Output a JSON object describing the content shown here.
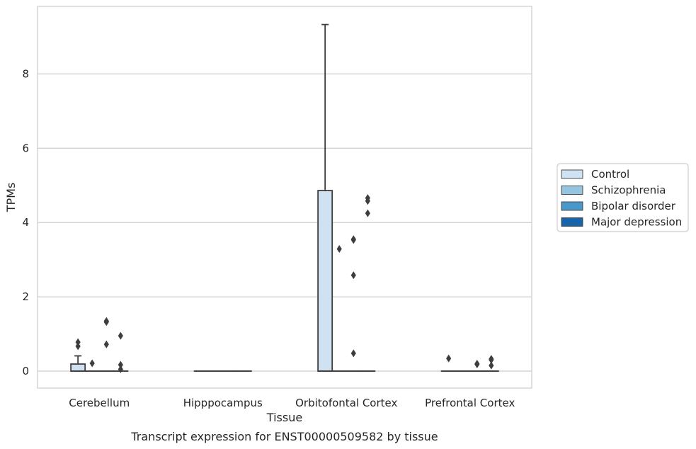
{
  "chart_data": {
    "type": "box",
    "title": "",
    "caption": "Transcript expression for ENST00000509582 by tissue",
    "xlabel": "Tissue",
    "ylabel": "TPMs",
    "ylim": [
      -0.45,
      9.8
    ],
    "yticks": [
      0,
      2,
      4,
      6,
      8
    ],
    "grid": true,
    "legend_position": "right",
    "categories": [
      "Cerebellum",
      "Hipppocampus",
      "Orbitofontal Cortex",
      "Prefrontal Cortex"
    ],
    "series": [
      {
        "name": "Control",
        "color": "#d0e1f2",
        "boxes": [
          {
            "q1": 0,
            "median": 0,
            "q3": 0.19,
            "whisker_low": 0,
            "whisker_high": 0.41,
            "outliers": [
              0.67,
              0.78
            ]
          },
          {
            "q1": 0,
            "median": 0,
            "q3": 0,
            "whisker_low": 0,
            "whisker_high": 0,
            "outliers": []
          },
          {
            "q1": 0,
            "median": 0,
            "q3": 4.86,
            "whisker_low": 0,
            "whisker_high": 9.33,
            "outliers": []
          },
          {
            "q1": 0,
            "median": 0,
            "q3": 0,
            "whisker_low": 0,
            "whisker_high": 0,
            "outliers": [
              0.34
            ]
          }
        ]
      },
      {
        "name": "Schizophrenia",
        "color": "#94c4df",
        "boxes": [
          {
            "q1": 0,
            "median": 0,
            "q3": 0,
            "whisker_low": 0,
            "whisker_high": 0,
            "outliers": [
              0.21
            ]
          },
          {
            "q1": 0,
            "median": 0,
            "q3": 0,
            "whisker_low": 0,
            "whisker_high": 0,
            "outliers": []
          },
          {
            "q1": 0,
            "median": 0,
            "q3": 0,
            "whisker_low": 0,
            "whisker_high": 0,
            "outliers": [
              3.29
            ]
          },
          {
            "q1": 0,
            "median": 0,
            "q3": 0,
            "whisker_low": 0,
            "whisker_high": 0,
            "outliers": []
          }
        ]
      },
      {
        "name": "Bipolar disorder",
        "color": "#4a98c9",
        "boxes": [
          {
            "q1": 0,
            "median": 0,
            "q3": 0,
            "whisker_low": 0,
            "whisker_high": 0,
            "outliers": [
              0.72,
              1.32,
              1.35
            ]
          },
          {
            "q1": 0,
            "median": 0,
            "q3": 0,
            "whisker_low": 0,
            "whisker_high": 0,
            "outliers": []
          },
          {
            "q1": 0,
            "median": 0,
            "q3": 0,
            "whisker_low": 0,
            "whisker_high": 0,
            "outliers": [
              0.48,
              2.58,
              3.53,
              3.55
            ]
          },
          {
            "q1": 0,
            "median": 0,
            "q3": 0,
            "whisker_low": 0,
            "whisker_high": 0,
            "outliers": [
              0.18,
              0.2
            ]
          }
        ]
      },
      {
        "name": "Major depression",
        "color": "#1764ab",
        "boxes": [
          {
            "q1": 0,
            "median": 0,
            "q3": 0,
            "whisker_low": 0,
            "whisker_high": 0,
            "outliers": [
              0.05,
              0.17,
              0.95
            ]
          },
          {
            "q1": 0,
            "median": 0,
            "q3": 0,
            "whisker_low": 0,
            "whisker_high": 0,
            "outliers": []
          },
          {
            "q1": 0,
            "median": 0,
            "q3": 0,
            "whisker_low": 0,
            "whisker_high": 0,
            "outliers": [
              4.25,
              4.58,
              4.66
            ]
          },
          {
            "q1": 0,
            "median": 0,
            "q3": 0,
            "whisker_low": 0,
            "whisker_high": 0,
            "outliers": [
              0.15,
              0.3,
              0.33
            ]
          }
        ]
      }
    ]
  }
}
